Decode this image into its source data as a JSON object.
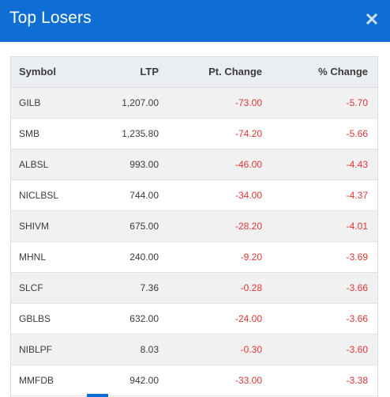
{
  "header": {
    "title": "Top Losers",
    "close_icon": "close-icon",
    "bg_color": "#0e6ed3"
  },
  "table": {
    "columns": [
      "Symbol",
      "LTP",
      "Pt. Change",
      "% Change"
    ],
    "rows": [
      {
        "symbol": "GILB",
        "ltp": "1,207.00",
        "pt_change": "-73.00",
        "pct_change": "-5.70"
      },
      {
        "symbol": "SMB",
        "ltp": "1,235.80",
        "pt_change": "-74.20",
        "pct_change": "-5.66"
      },
      {
        "symbol": "ALBSL",
        "ltp": "993.00",
        "pt_change": "-46.00",
        "pct_change": "-4.43"
      },
      {
        "symbol": "NICLBSL",
        "ltp": "744.00",
        "pt_change": "-34.00",
        "pct_change": "-4.37"
      },
      {
        "symbol": "SHIVM",
        "ltp": "675.00",
        "pt_change": "-28.20",
        "pct_change": "-4.01"
      },
      {
        "symbol": "MHNL",
        "ltp": "240.00",
        "pt_change": "-9.20",
        "pct_change": "-3.69"
      },
      {
        "symbol": "SLCF",
        "ltp": "7.36",
        "pt_change": "-0.28",
        "pct_change": "-3.66"
      },
      {
        "symbol": "GBLBS",
        "ltp": "632.00",
        "pt_change": "-24.00",
        "pct_change": "-3.66"
      },
      {
        "symbol": "NIBLPF",
        "ltp": "8.03",
        "pt_change": "-0.30",
        "pct_change": "-3.60"
      },
      {
        "symbol": "MMFDB",
        "ltp": "942.00",
        "pt_change": "-33.00",
        "pct_change": "-3.38"
      }
    ],
    "negative_color": "#e03535"
  }
}
